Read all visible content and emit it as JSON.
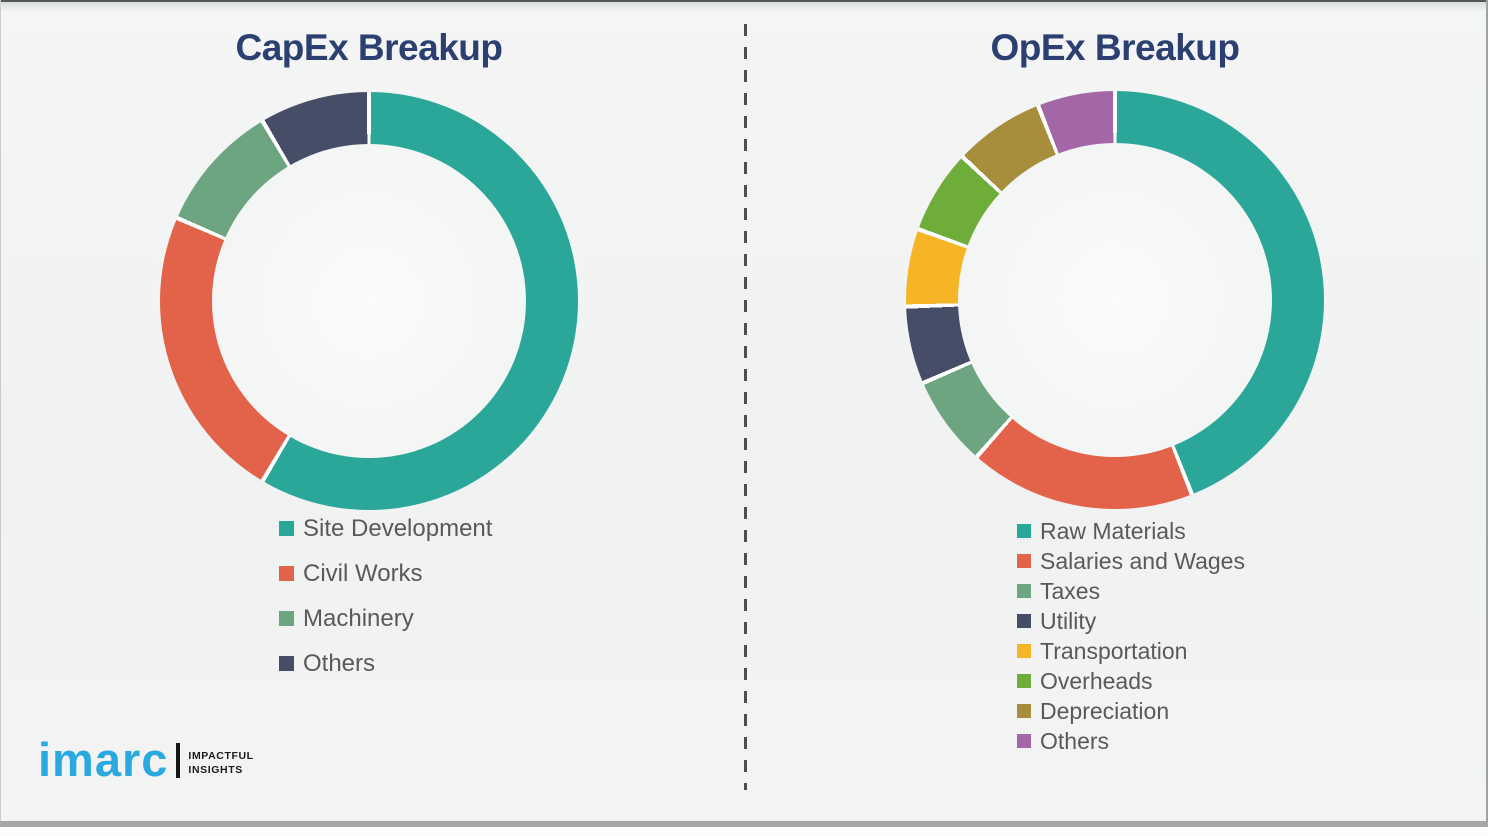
{
  "logo": {
    "brand": "imarc",
    "tagline_line1": "IMPACTFUL",
    "tagline_line2": "INSIGHTS",
    "brand_color": "#2aa9e0"
  },
  "chart_data": [
    {
      "type": "pie",
      "subtype": "donut",
      "title": "CapEx Breakup",
      "labels": [
        "Site Development",
        "Civil Works",
        "Machinery",
        "Others"
      ],
      "values": [
        58.5,
        23,
        10,
        8.5
      ],
      "values_note": "percent, estimated from segment angles; no numeric labels shown in image",
      "colors": [
        "#2ba79a",
        "#e2634a",
        "#6ca580",
        "#464e67"
      ],
      "start_angle_deg": 0,
      "direction": "clockwise",
      "legend_position": "bottom-left",
      "grid": false
    },
    {
      "type": "pie",
      "subtype": "donut",
      "title": "OpEx Breakup",
      "labels": [
        "Raw Materials",
        "Salaries and Wages",
        "Taxes",
        "Utility",
        "Transportation",
        "Overheads",
        "Depreciation",
        "Others"
      ],
      "values": [
        44,
        17.5,
        7,
        6,
        6,
        6.5,
        7,
        6
      ],
      "values_note": "percent, estimated from segment angles; no numeric labels shown in image",
      "colors": [
        "#2ba79a",
        "#e2634a",
        "#6ca580",
        "#464e67",
        "#f6b526",
        "#6fad3b",
        "#a68e3c",
        "#a367a7"
      ],
      "start_angle_deg": 0,
      "direction": "clockwise",
      "legend_position": "bottom-left",
      "grid": false
    }
  ]
}
